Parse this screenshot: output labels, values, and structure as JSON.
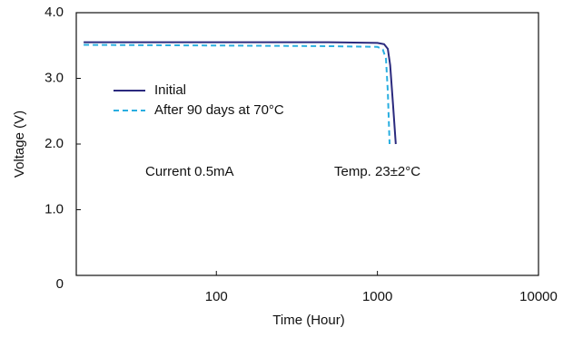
{
  "chart_data": {
    "type": "line",
    "xlabel": "Time (Hour)",
    "ylabel": "Voltage (V)",
    "xscale": "log",
    "xlim": [
      13.5,
      10000
    ],
    "xticks": [
      100,
      1000,
      10000
    ],
    "ylim": [
      0,
      4
    ],
    "yticks": [
      0,
      {
        "value": 1,
        "label": "1.0"
      },
      {
        "value": 2,
        "label": "2.0"
      },
      {
        "value": 3,
        "label": "3.0"
      },
      {
        "value": 4,
        "label": "4.0"
      }
    ],
    "series": [
      {
        "name": "Initial",
        "color": "#2b2a7e",
        "dash": false,
        "x": [
          15,
          100,
          500,
          1000,
          1100,
          1160,
          1200,
          1250,
          1300
        ],
        "values": [
          3.55,
          3.55,
          3.55,
          3.54,
          3.52,
          3.45,
          3.2,
          2.6,
          2.0
        ]
      },
      {
        "name": "After 90 days at 70°C",
        "color": "#29aee0",
        "dash": true,
        "x": [
          15,
          100,
          500,
          1000,
          1080,
          1130,
          1160,
          1190
        ],
        "values": [
          3.51,
          3.5,
          3.49,
          3.48,
          3.44,
          3.3,
          2.8,
          2.0
        ]
      }
    ],
    "annotations": [
      "Current 0.5mA",
      "Temp. 23±2°C"
    ]
  }
}
